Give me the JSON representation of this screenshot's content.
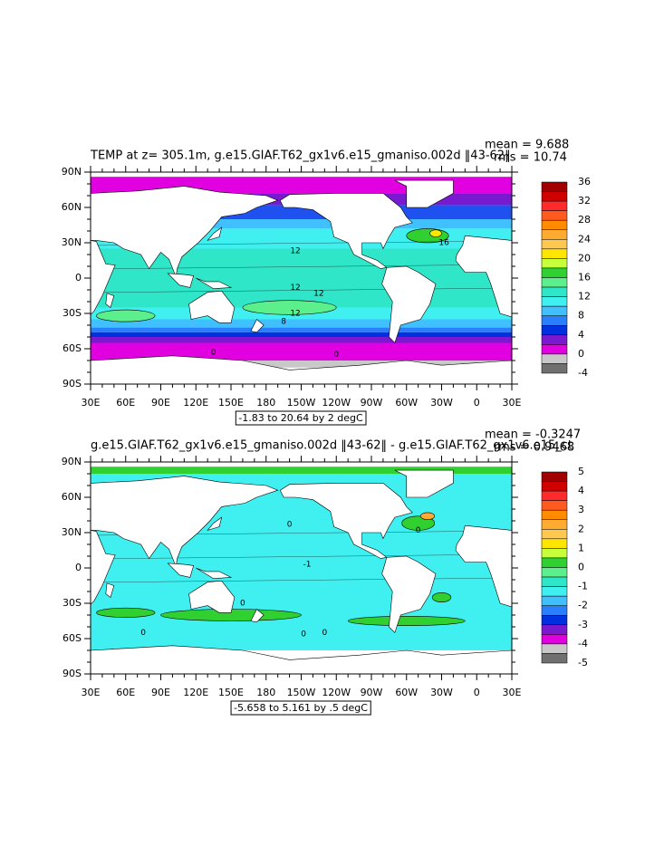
{
  "axes": {
    "lat_labels": [
      "90N",
      "60N",
      "30N",
      "0",
      "30S",
      "60S",
      "90S"
    ],
    "lon_labels": [
      "30E",
      "60E",
      "90E",
      "120E",
      "150E",
      "180",
      "150W",
      "120W",
      "90W",
      "60W",
      "30W",
      "0",
      "30E"
    ]
  },
  "panels": [
    {
      "title": "TEMP at z= 305.1m, g.e15.GIAF.T62_gx1v6.e15_gmaniso.002d  ‖43-62‖",
      "mean": "mean = 9.688",
      "rms": "rms = 10.74",
      "range_label": "-1.83 to 20.64 by 2 degC",
      "colorbar_labels": [
        "36",
        "32",
        "28",
        "24",
        "20",
        "16",
        "12",
        "8",
        "4",
        "0",
        "-4"
      ],
      "contour_labels": [
        "16",
        "12",
        "12",
        "12",
        "12",
        "8",
        "0",
        "0"
      ]
    },
    {
      "title": "g.e15.GIAF.T62_gx1v6.e15_gmaniso.002d  ‖43-62‖  -  g.e15.GIAF.T62_gx1v6.e15_ct",
      "mean": "mean = -0.3247",
      "rms": "rms = 0.9468",
      "range_label": "-5.658 to 5.161 by .5 degC",
      "colorbar_labels": [
        "5",
        "4",
        "3",
        "2",
        "1",
        "0",
        "-1",
        "-2",
        "-3",
        "-4",
        "-5"
      ],
      "contour_labels": [
        "0",
        "0",
        "0",
        "0",
        "0",
        "0",
        "-1"
      ]
    }
  ],
  "colorbar_colors": [
    "#a00000",
    "#d00000",
    "#ff2a2a",
    "#ff5a20",
    "#ff8c00",
    "#ffaa30",
    "#ffc850",
    "#ffe600",
    "#c8ff3c",
    "#30d030",
    "#5cf08c",
    "#30e6c8",
    "#40f0f0",
    "#40c0ff",
    "#2a7fff",
    "#0030e0",
    "#7a1ad0",
    "#e000e0",
    "#c8c8c8",
    "#707070"
  ]
}
